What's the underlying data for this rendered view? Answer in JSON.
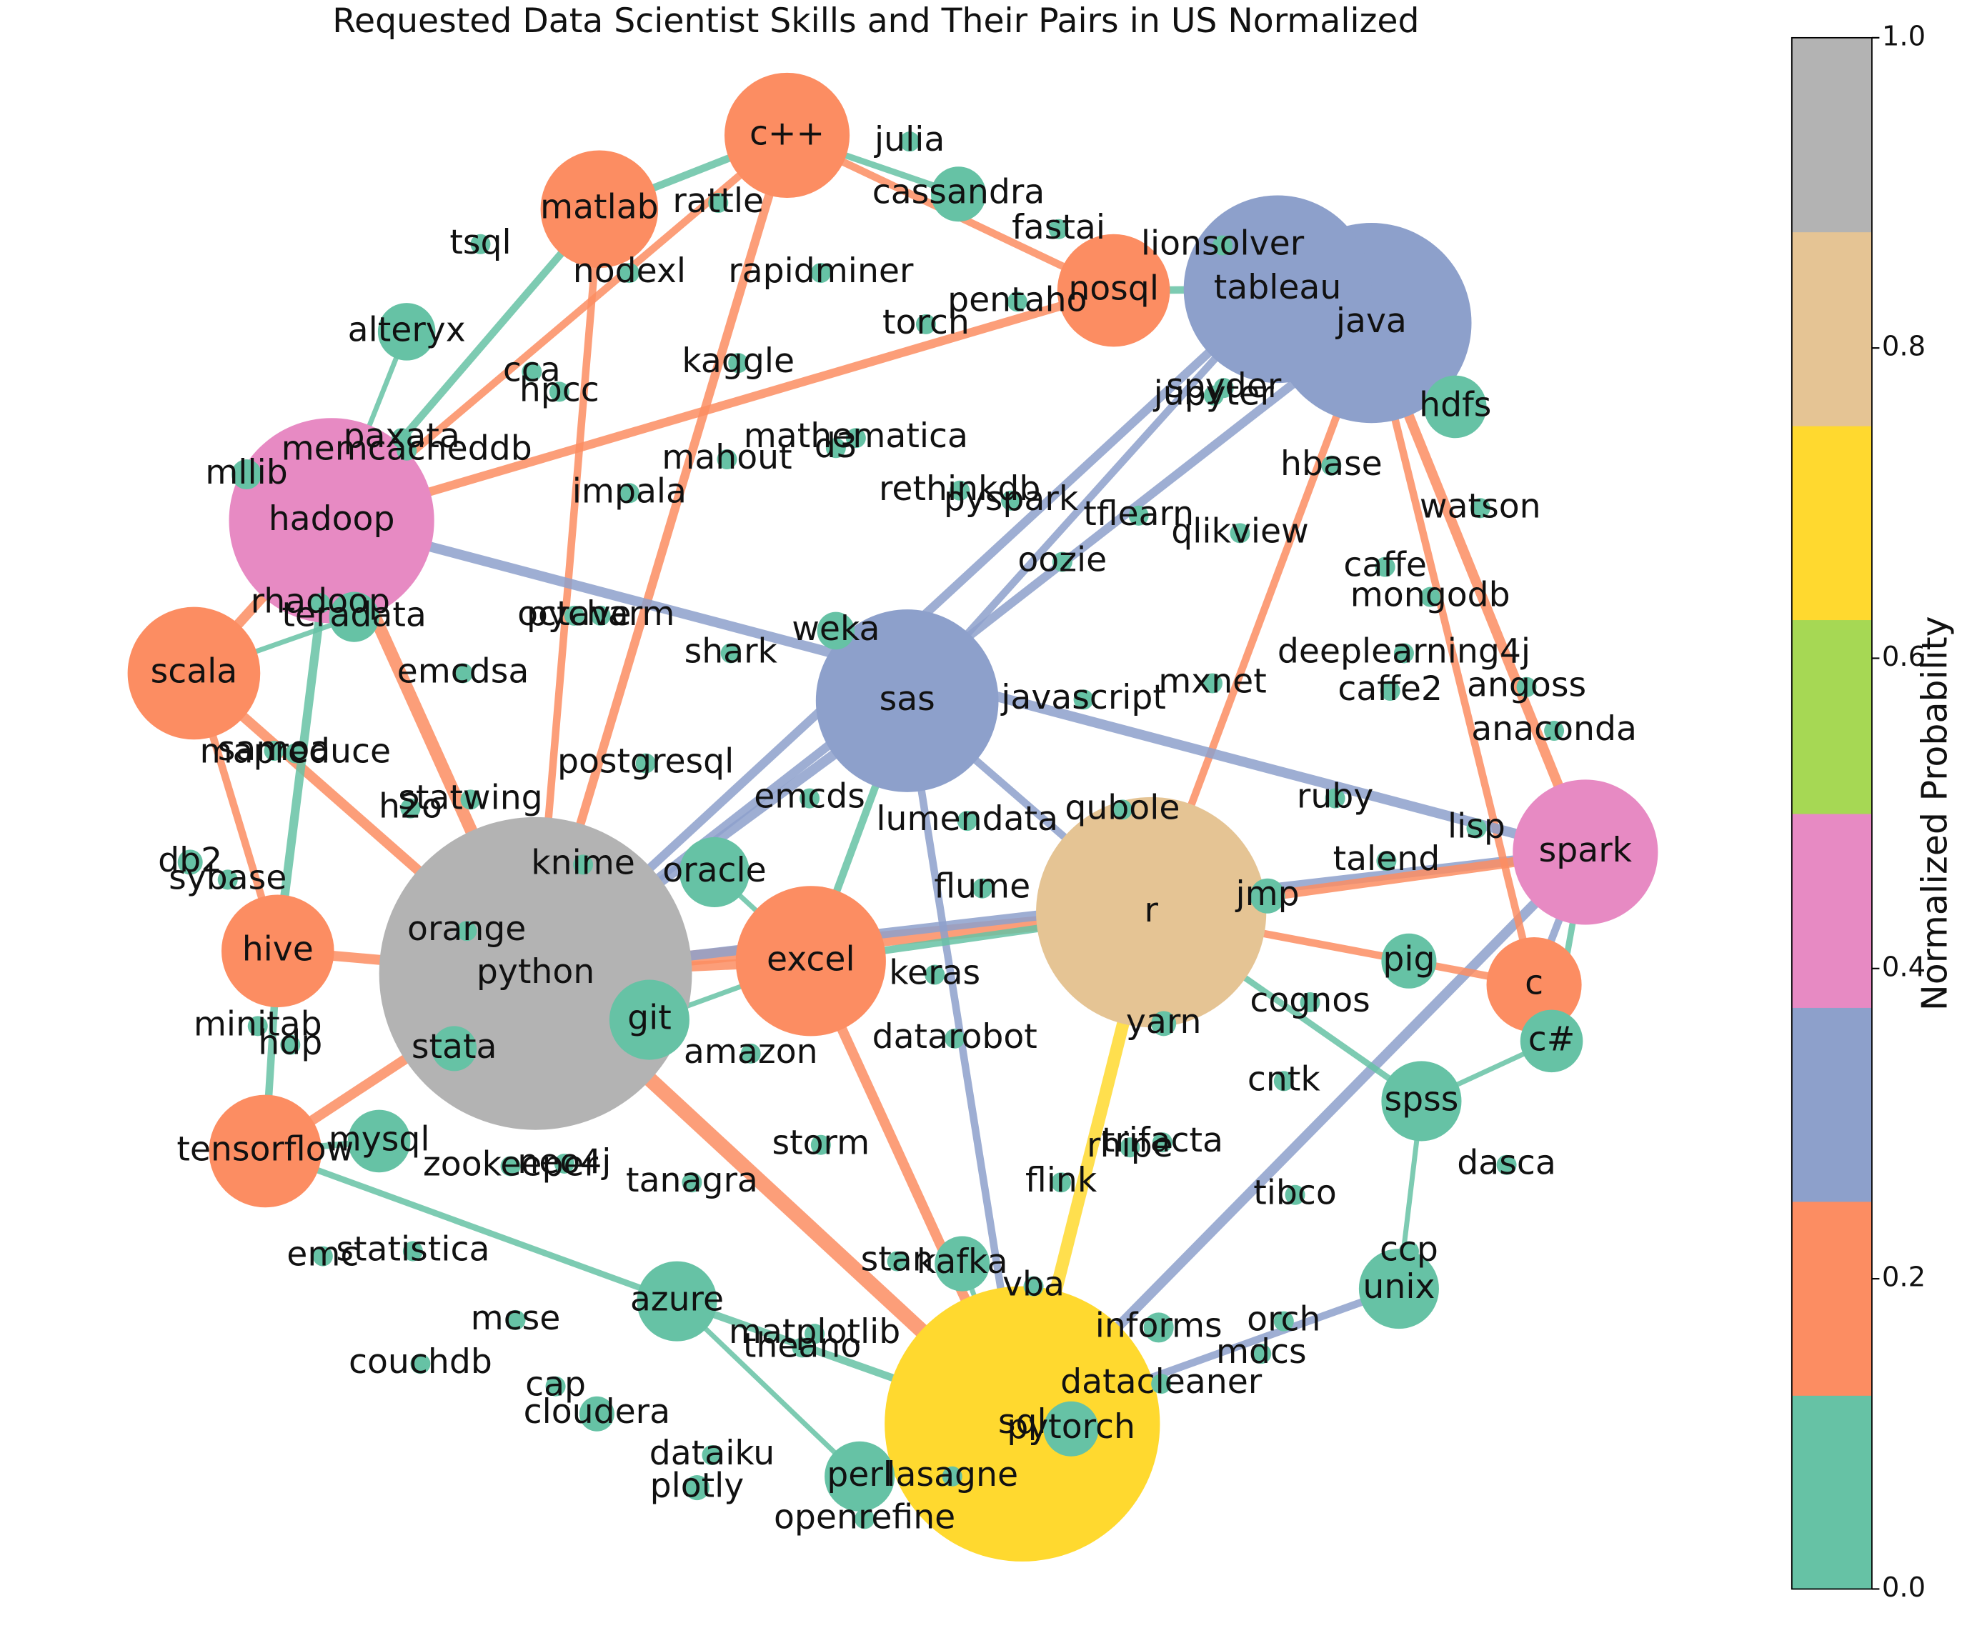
{
  "chart_data": {
    "type": "network",
    "title": "Requested Data Scientist Skills and Their Pairs in US Normalized",
    "colorbar": {
      "label": "Normalized Probability",
      "lim": [
        0,
        1
      ],
      "ticks": [
        {
          "value": 0,
          "label": "0.0"
        },
        0.2,
        0.4,
        0.6,
        0.8,
        {
          "value": 1,
          "label": "1.0"
        }
      ],
      "colors": [
        "#66c2a5",
        "#fc8d62",
        "#8da0cb",
        "#e78ac3",
        "#a6d854",
        "#ffd92f",
        "#e5c494",
        "#b3b3b3"
      ]
    },
    "nodes": [
      {
        "name": "python",
        "size": 125,
        "value": 1.0
      },
      {
        "name": "sql",
        "size": 110,
        "value": 0.7
      },
      {
        "name": "r",
        "size": 92,
        "value": 0.8
      },
      {
        "name": "java",
        "size": 80,
        "value": 0.3
      },
      {
        "name": "tableau",
        "size": 75,
        "value": 0.3
      },
      {
        "name": "spark",
        "size": 58,
        "value": 0.45
      },
      {
        "name": "hadoop",
        "size": 82,
        "value": 0.45
      },
      {
        "name": "sas",
        "size": 73,
        "value": 0.3
      },
      {
        "name": "c++",
        "size": 50,
        "value": 0.2
      },
      {
        "name": "matlab",
        "size": 47,
        "value": 0.2
      },
      {
        "name": "nosql",
        "size": 45,
        "value": 0.2
      },
      {
        "name": "scala",
        "size": 53,
        "value": 0.2
      },
      {
        "name": "hive",
        "size": 45,
        "value": 0.2
      },
      {
        "name": "tensorflow",
        "size": 45,
        "value": 0.2
      },
      {
        "name": "excel",
        "size": 60,
        "value": 0.2
      },
      {
        "name": "c",
        "size": 38,
        "value": 0.2
      },
      {
        "name": "azure",
        "size": 32,
        "value": 0.05
      },
      {
        "name": "unix",
        "size": 32,
        "value": 0.05
      },
      {
        "name": "spss",
        "size": 32,
        "value": 0.05
      },
      {
        "name": "git",
        "size": 32,
        "value": 0.05
      },
      {
        "name": "perl",
        "size": 28,
        "value": 0.05
      },
      {
        "name": "hdfs",
        "size": 25,
        "value": 0.05
      },
      {
        "name": "c#",
        "size": 25,
        "value": 0.05
      },
      {
        "name": "alteryx",
        "size": 23,
        "value": 0.05
      },
      {
        "name": "cassandra",
        "size": 22,
        "value": 0.05
      },
      {
        "name": "kafka",
        "size": 22,
        "value": 0.05
      },
      {
        "name": "oracle",
        "size": 28,
        "value": 0.05
      },
      {
        "name": "mysql",
        "size": 25,
        "value": 0.05
      },
      {
        "name": "teradata",
        "size": 20,
        "value": 0.05
      },
      {
        "name": "pytorch",
        "size": 22,
        "value": 0.05
      },
      {
        "name": "julia",
        "size": 8,
        "value": 0.05
      },
      {
        "name": "rattle",
        "size": 8,
        "value": 0.05
      },
      {
        "name": "fastai",
        "size": 8,
        "value": 0.05
      },
      {
        "name": "lionsolver",
        "size": 8,
        "value": 0.05
      },
      {
        "name": "tsql",
        "size": 8,
        "value": 0.05
      },
      {
        "name": "nodexl",
        "size": 8,
        "value": 0.05
      },
      {
        "name": "rapidminer",
        "size": 8,
        "value": 0.05
      },
      {
        "name": "pentaho",
        "size": 8,
        "value": 0.05
      },
      {
        "name": "torch",
        "size": 8,
        "value": 0.05
      },
      {
        "name": "kaggle",
        "size": 8,
        "value": 0.05
      },
      {
        "name": "cca",
        "size": 8,
        "value": 0.05
      },
      {
        "name": "hpcc",
        "size": 8,
        "value": 0.05
      },
      {
        "name": "spyder",
        "size": 8,
        "value": 0.05
      },
      {
        "name": "jupyter",
        "size": 8,
        "value": 0.05
      },
      {
        "name": "paxata",
        "size": 8,
        "value": 0.05
      },
      {
        "name": "memcacheddb",
        "size": 8,
        "value": 0.05
      },
      {
        "name": "mathematica",
        "size": 8,
        "value": 0.05
      },
      {
        "name": "d3",
        "size": 8,
        "value": 0.05
      },
      {
        "name": "mahout",
        "size": 8,
        "value": 0.05
      },
      {
        "name": "mllib",
        "size": 12,
        "value": 0.05
      },
      {
        "name": "hbase",
        "size": 8,
        "value": 0.05
      },
      {
        "name": "impala",
        "size": 8,
        "value": 0.05
      },
      {
        "name": "rethinkdb",
        "size": 8,
        "value": 0.05
      },
      {
        "name": "pyspark",
        "size": 8,
        "value": 0.05
      },
      {
        "name": "tflearn",
        "size": 8,
        "value": 0.05
      },
      {
        "name": "watson",
        "size": 8,
        "value": 0.05
      },
      {
        "name": "qlikview",
        "size": 8,
        "value": 0.05
      },
      {
        "name": "oozie",
        "size": 8,
        "value": 0.05
      },
      {
        "name": "caffe",
        "size": 8,
        "value": 0.05
      },
      {
        "name": "mongodb",
        "size": 8,
        "value": 0.05
      },
      {
        "name": "rhadoop",
        "size": 8,
        "value": 0.05
      },
      {
        "name": "octave",
        "size": 8,
        "value": 0.05
      },
      {
        "name": "pycharm",
        "size": 8,
        "value": 0.05
      },
      {
        "name": "weka",
        "size": 15,
        "value": 0.05
      },
      {
        "name": "shark",
        "size": 8,
        "value": 0.05
      },
      {
        "name": "deeplearning4j",
        "size": 8,
        "value": 0.05
      },
      {
        "name": "emcdsa",
        "size": 8,
        "value": 0.05
      },
      {
        "name": "javascript",
        "size": 8,
        "value": 0.05
      },
      {
        "name": "mxnet",
        "size": 8,
        "value": 0.05
      },
      {
        "name": "caffe2",
        "size": 8,
        "value": 0.05
      },
      {
        "name": "angoss",
        "size": 8,
        "value": 0.05
      },
      {
        "name": "samoa",
        "size": 8,
        "value": 0.05
      },
      {
        "name": "mapreduce",
        "size": 8,
        "value": 0.05
      },
      {
        "name": "anaconda",
        "size": 8,
        "value": 0.05
      },
      {
        "name": "postgresql",
        "size": 8,
        "value": 0.05
      },
      {
        "name": "emcds",
        "size": 8,
        "value": 0.05
      },
      {
        "name": "statwing",
        "size": 8,
        "value": 0.05
      },
      {
        "name": "h2o",
        "size": 8,
        "value": 0.05
      },
      {
        "name": "ruby",
        "size": 8,
        "value": 0.05
      },
      {
        "name": "qubole",
        "size": 8,
        "value": 0.05
      },
      {
        "name": "lumendata",
        "size": 8,
        "value": 0.05
      },
      {
        "name": "lisp",
        "size": 8,
        "value": 0.05
      },
      {
        "name": "db2",
        "size": 10,
        "value": 0.05
      },
      {
        "name": "talend",
        "size": 8,
        "value": 0.05
      },
      {
        "name": "knime",
        "size": 8,
        "value": 0.05
      },
      {
        "name": "sybase",
        "size": 8,
        "value": 0.05
      },
      {
        "name": "flume",
        "size": 8,
        "value": 0.05
      },
      {
        "name": "jmp",
        "size": 14,
        "value": 0.05
      },
      {
        "name": "orange",
        "size": 8,
        "value": 0.05
      },
      {
        "name": "keras",
        "size": 8,
        "value": 0.05
      },
      {
        "name": "pig",
        "size": 22,
        "value": 0.05
      },
      {
        "name": "cognos",
        "size": 8,
        "value": 0.05
      },
      {
        "name": "minitab",
        "size": 8,
        "value": 0.05
      },
      {
        "name": "hdp",
        "size": 8,
        "value": 0.05
      },
      {
        "name": "stata",
        "size": 18,
        "value": 0.05
      },
      {
        "name": "yarn",
        "size": 10,
        "value": 0.05
      },
      {
        "name": "datarobot",
        "size": 8,
        "value": 0.05
      },
      {
        "name": "amazon",
        "size": 8,
        "value": 0.05
      },
      {
        "name": "cntk",
        "size": 8,
        "value": 0.05
      },
      {
        "name": "storm",
        "size": 8,
        "value": 0.05
      },
      {
        "name": "trifacta",
        "size": 8,
        "value": 0.05
      },
      {
        "name": "rhipe",
        "size": 8,
        "value": 0.05
      },
      {
        "name": "zookeeper",
        "size": 8,
        "value": 0.05
      },
      {
        "name": "neo4j",
        "size": 8,
        "value": 0.05
      },
      {
        "name": "tanagra",
        "size": 8,
        "value": 0.05
      },
      {
        "name": "flink",
        "size": 8,
        "value": 0.05
      },
      {
        "name": "dasca",
        "size": 8,
        "value": 0.05
      },
      {
        "name": "tibco",
        "size": 8,
        "value": 0.05
      },
      {
        "name": "emc",
        "size": 8,
        "value": 0.05
      },
      {
        "name": "statistica",
        "size": 8,
        "value": 0.05
      },
      {
        "name": "ccp",
        "size": 8,
        "value": 0.05
      },
      {
        "name": "stan",
        "size": 8,
        "value": 0.05
      },
      {
        "name": "vba",
        "size": 8,
        "value": 0.05
      },
      {
        "name": "mcse",
        "size": 8,
        "value": 0.05
      },
      {
        "name": "informs",
        "size": 12,
        "value": 0.05
      },
      {
        "name": "orch",
        "size": 8,
        "value": 0.05
      },
      {
        "name": "matplotlib",
        "size": 8,
        "value": 0.05
      },
      {
        "name": "theano",
        "size": 8,
        "value": 0.05
      },
      {
        "name": "mdcs",
        "size": 8,
        "value": 0.05
      },
      {
        "name": "couchdb",
        "size": 8,
        "value": 0.05
      },
      {
        "name": "cap",
        "size": 8,
        "value": 0.05
      },
      {
        "name": "datacleaner",
        "size": 8,
        "value": 0.05
      },
      {
        "name": "cloudera",
        "size": 14,
        "value": 0.05
      },
      {
        "name": "dataiku",
        "size": 8,
        "value": 0.05
      },
      {
        "name": "plotly",
        "size": 10,
        "value": 0.05
      },
      {
        "name": "lasagne",
        "size": 8,
        "value": 0.05
      },
      {
        "name": "openrefine",
        "size": 8,
        "value": 0.05
      }
    ],
    "edges": {
      "source": [
        0,
        0,
        0,
        0,
        0,
        0,
        0,
        0,
        0,
        0,
        0,
        0,
        0,
        1,
        1,
        1,
        1,
        1,
        1,
        1,
        2,
        2,
        2,
        2,
        2,
        3,
        3,
        3,
        3,
        4,
        4,
        5,
        5,
        5,
        6,
        6,
        6,
        6,
        7,
        8,
        8,
        8,
        9,
        11,
        12,
        13,
        13,
        16,
        17,
        18,
        19,
        23,
        26,
        28,
        25,
        29,
        0,
        2
      ],
      "target": [
        1,
        2,
        6,
        7,
        11,
        12,
        13,
        14,
        8,
        9,
        5,
        3,
        4,
        2,
        14,
        5,
        7,
        16,
        17,
        20,
        5,
        7,
        3,
        15,
        14,
        4,
        5,
        21,
        15,
        10,
        7,
        6,
        15,
        22,
        11,
        12,
        8,
        10,
        14,
        9,
        10,
        24,
        6,
        12,
        13,
        27,
        16,
        20,
        18,
        22,
        14,
        6,
        14,
        11,
        1,
        1,
        19,
        18
      ],
      "weight": [
        12,
        12,
        10,
        8,
        8,
        8,
        8,
        8,
        7,
        6,
        8,
        7,
        7,
        10,
        8,
        8,
        6,
        6,
        6,
        5,
        8,
        6,
        6,
        6,
        6,
        8,
        8,
        5,
        6,
        6,
        6,
        8,
        6,
        5,
        8,
        7,
        6,
        7,
        6,
        6,
        6,
        5,
        6,
        6,
        6,
        5,
        5,
        4,
        4,
        4,
        4,
        4,
        4,
        4,
        4,
        4,
        5,
        5
      ],
      "value": [
        0.2,
        0.2,
        0.2,
        0.3,
        0.2,
        0.2,
        0.2,
        0.2,
        0.2,
        0.2,
        0.3,
        0.3,
        0.3,
        0.7,
        0.2,
        0.3,
        0.3,
        0.05,
        0.3,
        0.05,
        0.2,
        0.3,
        0.2,
        0.2,
        0.05,
        0.3,
        0.2,
        0.05,
        0.2,
        0.05,
        0.3,
        0.3,
        0.3,
        0.05,
        0.2,
        0.05,
        0.2,
        0.2,
        0.05,
        0.05,
        0.2,
        0.05,
        0.05,
        0.2,
        0.05,
        0.05,
        0.05,
        0.05,
        0.05,
        0.05,
        0.05,
        0.05,
        0.05,
        0.05,
        0.05,
        0.05,
        0.05,
        0.05
      ]
    }
  }
}
